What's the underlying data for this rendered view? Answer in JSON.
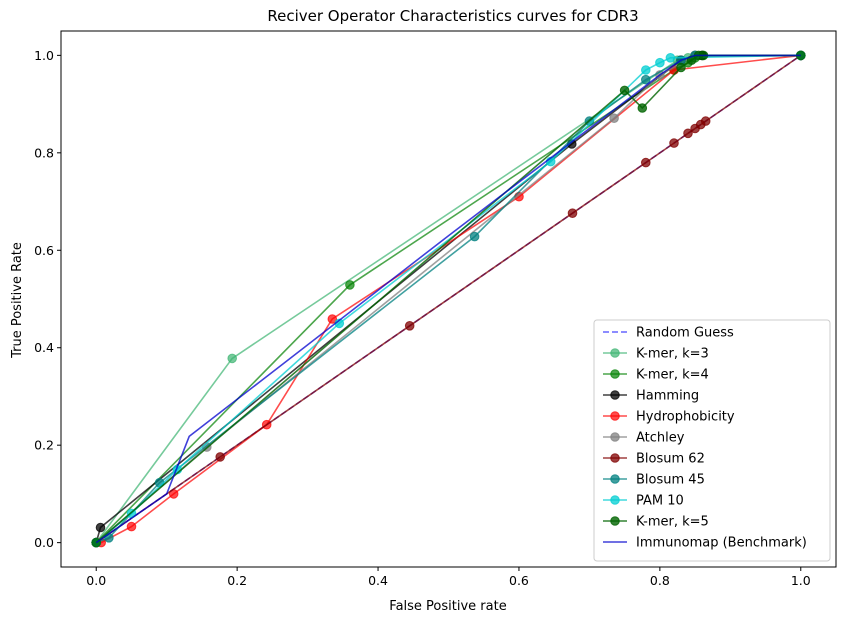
{
  "chart_data": {
    "type": "line",
    "title": "Reciver Operator Characteristics curves for CDR3",
    "xlabel": "False Positive rate",
    "ylabel": "True Positive Rate",
    "xlim": [
      -0.05,
      1.05
    ],
    "ylim": [
      -0.05,
      1.05
    ],
    "xticks": [
      "0.0",
      "0.2",
      "0.4",
      "0.6",
      "0.8",
      "1.0"
    ],
    "yticks": [
      "0.0",
      "0.2",
      "0.4",
      "0.6",
      "0.8",
      "1.0"
    ],
    "xtick_values": [
      0.0,
      0.2,
      0.4,
      0.6,
      0.8,
      1.0
    ],
    "ytick_values": [
      0.0,
      0.2,
      0.4,
      0.6,
      0.8,
      1.0
    ],
    "grid": false,
    "legend_position": "lower-right",
    "series": [
      {
        "name": "Random Guess",
        "color": "#0000ff",
        "opacity": 0.6,
        "dashed": true,
        "marker": false,
        "x": [
          0,
          1
        ],
        "y": [
          0,
          1
        ]
      },
      {
        "name": "K-mer, k=3",
        "color": "#3cb371",
        "opacity": 0.7,
        "dashed": false,
        "marker": true,
        "x": [
          0,
          0.193,
          0.825,
          0.84,
          0.85,
          1.0
        ],
        "y": [
          0,
          0.378,
          0.99,
          0.995,
          1.0,
          1.0
        ]
      },
      {
        "name": "K-mer, k=4",
        "color": "#008000",
        "opacity": 0.7,
        "dashed": false,
        "marker": true,
        "x": [
          0,
          0.36,
          0.82,
          0.84,
          0.85,
          0.86,
          1.0
        ],
        "y": [
          0,
          0.529,
          0.97,
          0.985,
          0.995,
          1.0,
          1.0
        ]
      },
      {
        "name": "Hamming",
        "color": "#000000",
        "opacity": 0.75,
        "dashed": false,
        "marker": true,
        "x": [
          0,
          0.006,
          0.675,
          0.83,
          0.85,
          0.86,
          1.0
        ],
        "y": [
          0,
          0.031,
          0.818,
          0.99,
          1.0,
          1.0,
          1.0
        ]
      },
      {
        "name": "Hydrophobicity",
        "color": "#ff0000",
        "opacity": 0.7,
        "dashed": false,
        "marker": true,
        "x": [
          0,
          0.007,
          0.05,
          0.11,
          0.242,
          0.335,
          0.6,
          0.82,
          1.0
        ],
        "y": [
          0,
          0.0,
          0.033,
          0.1,
          0.242,
          0.459,
          0.71,
          0.97,
          1.0
        ]
      },
      {
        "name": "Atchley",
        "color": "#808080",
        "opacity": 0.75,
        "dashed": false,
        "marker": true,
        "x": [
          0,
          0.157,
          0.735,
          0.8,
          0.85,
          1.0
        ],
        "y": [
          0,
          0.196,
          0.871,
          0.96,
          1.0,
          1.0
        ]
      },
      {
        "name": "Blosum 62",
        "color": "#800000",
        "opacity": 0.75,
        "dashed": false,
        "marker": true,
        "x": [
          0,
          0.176,
          0.445,
          0.676,
          0.78,
          0.82,
          0.84,
          0.85,
          0.858,
          0.865,
          1.0
        ],
        "y": [
          0,
          0.176,
          0.445,
          0.676,
          0.78,
          0.82,
          0.84,
          0.85,
          0.858,
          0.865,
          1.0
        ]
      },
      {
        "name": "Blosum 45",
        "color": "#008080",
        "opacity": 0.75,
        "dashed": false,
        "marker": true,
        "x": [
          0,
          0.018,
          0.09,
          0.537,
          0.7,
          0.78,
          0.83,
          0.85,
          1.0
        ],
        "y": [
          0,
          0.01,
          0.123,
          0.628,
          0.865,
          0.95,
          0.99,
          1.0,
          1.0
        ]
      },
      {
        "name": "PAM 10",
        "color": "#00ced1",
        "opacity": 0.75,
        "dashed": false,
        "marker": true,
        "x": [
          0,
          0.05,
          0.115,
          0.345,
          0.645,
          0.78,
          0.8,
          0.815,
          1.0
        ],
        "y": [
          0,
          0.06,
          0.15,
          0.45,
          0.782,
          0.97,
          0.985,
          0.995,
          1.0
        ]
      },
      {
        "name": "K-mer, k=5",
        "color": "#006400",
        "opacity": 0.8,
        "dashed": false,
        "marker": true,
        "x": [
          0,
          0.75,
          0.775,
          0.83,
          0.845,
          0.855,
          0.862,
          1.0
        ],
        "y": [
          0,
          0.928,
          0.892,
          0.975,
          0.99,
          1.0,
          1.0,
          1.0
        ]
      },
      {
        "name": "Immunomap (Benchmark)",
        "color": "#0000cd",
        "opacity": 0.75,
        "dashed": false,
        "marker": false,
        "x": [
          0,
          0.04,
          0.1,
          0.132,
          0.25,
          0.5,
          0.8,
          0.83,
          0.85,
          1.0
        ],
        "y": [
          0,
          0.04,
          0.1,
          0.218,
          0.35,
          0.63,
          0.96,
          0.99,
          1.0,
          1.0
        ]
      }
    ]
  }
}
